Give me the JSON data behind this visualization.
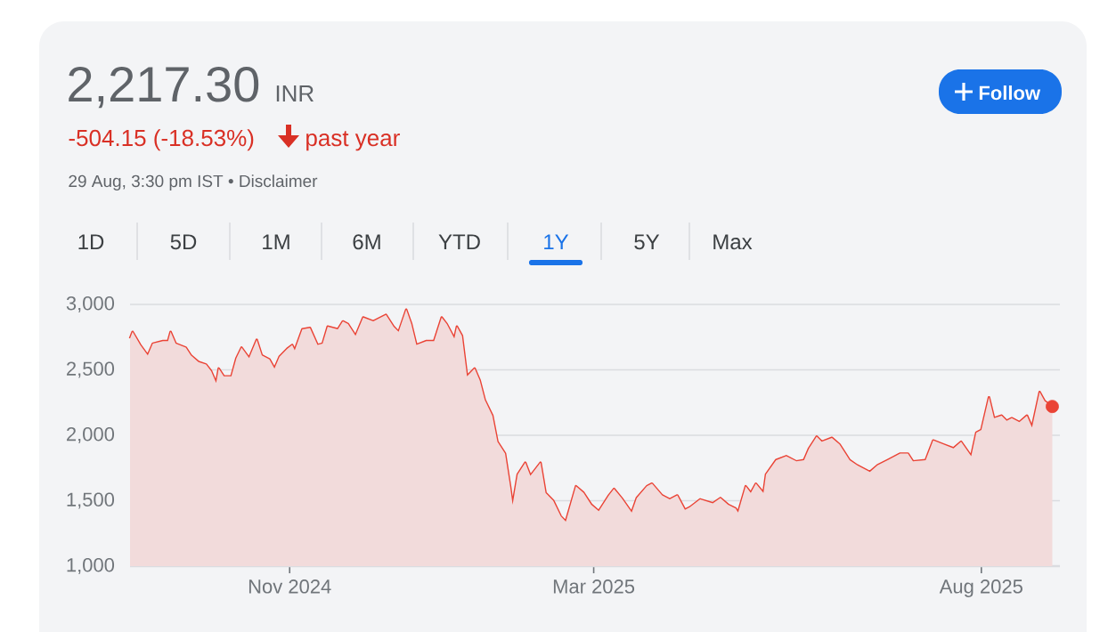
{
  "chart_data": {
    "type": "area",
    "annotations": [
      "2,217.30",
      "INR",
      "-504.15 (-18.53%)",
      "past year",
      "29 Aug, 3:30 pm IST • Disclaimer",
      "Follow",
      "1D",
      "5D",
      "1M",
      "6M",
      "YTD",
      "1Y",
      "5Y",
      "Max"
    ],
    "series": [
      {
        "color": "#ea4335",
        "marker": "none",
        "x": [
          "2024-08-30",
          "2024-08-31",
          "2024-09-03",
          "2024-09-06",
          "2024-09-08",
          "2024-09-12",
          "2024-09-14",
          "2024-09-15",
          "2024-09-17",
          "2024-09-21",
          "2024-09-23",
          "2024-09-26",
          "2024-09-29",
          "2024-10-01",
          "2024-10-03",
          "2024-10-04",
          "2024-10-06",
          "2024-10-09",
          "2024-10-11",
          "2024-10-13",
          "2024-10-16",
          "2024-10-19",
          "2024-10-21",
          "2024-10-24",
          "2024-10-26",
          "2024-10-28",
          "2024-10-31",
          "2024-11-02",
          "2024-11-03",
          "2024-11-06",
          "2024-11-09",
          "2024-11-12",
          "2024-11-14",
          "2024-11-16",
          "2024-11-20",
          "2024-11-22",
          "2024-11-24",
          "2024-11-27",
          "2024-11-30",
          "2024-12-04",
          "2024-12-09",
          "2024-12-12",
          "2024-12-14",
          "2024-12-17",
          "2024-12-19",
          "2024-12-21",
          "2024-12-25",
          "2024-12-28",
          "2024-12-31",
          "2025-01-02",
          "2025-01-05",
          "2025-01-06",
          "2025-01-08",
          "2025-01-10",
          "2025-01-13",
          "2025-01-15",
          "2025-01-17",
          "2025-01-20",
          "2025-01-22",
          "2025-01-25",
          "2025-01-27",
          "2025-01-28",
          "2025-01-30",
          "2025-02-02",
          "2025-02-04",
          "2025-02-08",
          "2025-02-10",
          "2025-02-13",
          "2025-02-16",
          "2025-02-18",
          "2025-02-22",
          "2025-02-25",
          "2025-02-28",
          "2025-03-03",
          "2025-03-07",
          "2025-03-09",
          "2025-03-12",
          "2025-03-16",
          "2025-03-18",
          "2025-03-22",
          "2025-03-24",
          "2025-03-28",
          "2025-03-31",
          "2025-04-03",
          "2025-04-06",
          "2025-04-08",
          "2025-04-12",
          "2025-04-17",
          "2025-04-20",
          "2025-04-23",
          "2025-04-26",
          "2025-04-27",
          "2025-04-30",
          "2025-05-02",
          "2025-05-04",
          "2025-05-07",
          "2025-05-08",
          "2025-05-12",
          "2025-05-16",
          "2025-05-20",
          "2025-05-23",
          "2025-05-25",
          "2025-05-28",
          "2025-05-30",
          "2025-06-03",
          "2025-06-06",
          "2025-06-10",
          "2025-06-13",
          "2025-06-18",
          "2025-06-21",
          "2025-06-25",
          "2025-06-30",
          "2025-07-03",
          "2025-07-05",
          "2025-07-10",
          "2025-07-13",
          "2025-07-17",
          "2025-07-21",
          "2025-07-24",
          "2025-07-28",
          "2025-07-30",
          "2025-08-01",
          "2025-08-04",
          "2025-08-06",
          "2025-08-09",
          "2025-08-11",
          "2025-08-13",
          "2025-08-16",
          "2025-08-19",
          "2025-08-21",
          "2025-08-24",
          "2025-08-26",
          "2025-08-29"
        ],
        "values": [
          2740,
          2790,
          2690,
          2610,
          2700,
          2720,
          2720,
          2790,
          2700,
          2670,
          2610,
          2560,
          2540,
          2490,
          2400,
          2510,
          2450,
          2450,
          2590,
          2670,
          2590,
          2730,
          2610,
          2580,
          2510,
          2600,
          2660,
          2690,
          2650,
          2810,
          2820,
          2690,
          2700,
          2830,
          2810,
          2870,
          2850,
          2760,
          2900,
          2870,
          2920,
          2830,
          2790,
          2960,
          2850,
          2690,
          2720,
          2720,
          2900,
          2850,
          2740,
          2830,
          2760,
          2450,
          2510,
          2420,
          2270,
          2150,
          1950,
          1860,
          1610,
          1470,
          1700,
          1790,
          1690,
          1790,
          1560,
          1500,
          1380,
          1340,
          1610,
          1560,
          1470,
          1420,
          1540,
          1590,
          1520,
          1410,
          1520,
          1610,
          1630,
          1540,
          1510,
          1540,
          1430,
          1450,
          1510,
          1480,
          1520,
          1470,
          1440,
          1410,
          1610,
          1560,
          1630,
          1560,
          1700,
          1810,
          1840,
          1800,
          1810,
          1900,
          1990,
          1950,
          1980,
          1930,
          1810,
          1770,
          1720,
          1770,
          1810,
          1860,
          1860,
          1800,
          1810,
          1960,
          1930,
          1900,
          1950,
          1840,
          2020,
          2040,
          2290,
          2130,
          2150,
          2110,
          2130,
          2100,
          2150,
          2060,
          2330,
          2260,
          2220
        ]
      },
      {
        "type": "scatter",
        "color": "#ea4335",
        "marker": "circle",
        "x": [
          "2025-08-29"
        ],
        "values": [
          2220
        ]
      }
    ],
    "xlim": [
      "2024-08-30",
      "2025-09-01"
    ],
    "xticks": [
      {
        "value": "2024-11-01",
        "label": "Nov 2024"
      },
      {
        "value": "2025-03-01",
        "label": "Mar 2025"
      },
      {
        "value": "2025-08-01",
        "label": "Aug 2025"
      }
    ],
    "ylim": [
      1000,
      3000
    ],
    "yticks": [
      {
        "value": 1000,
        "label": "1,000"
      },
      {
        "value": 1500,
        "label": "1,500"
      },
      {
        "value": 2000,
        "label": "2,000"
      },
      {
        "value": 2500,
        "label": "2,500"
      },
      {
        "value": 3000,
        "label": "3,000"
      }
    ],
    "grid": "y"
  }
}
